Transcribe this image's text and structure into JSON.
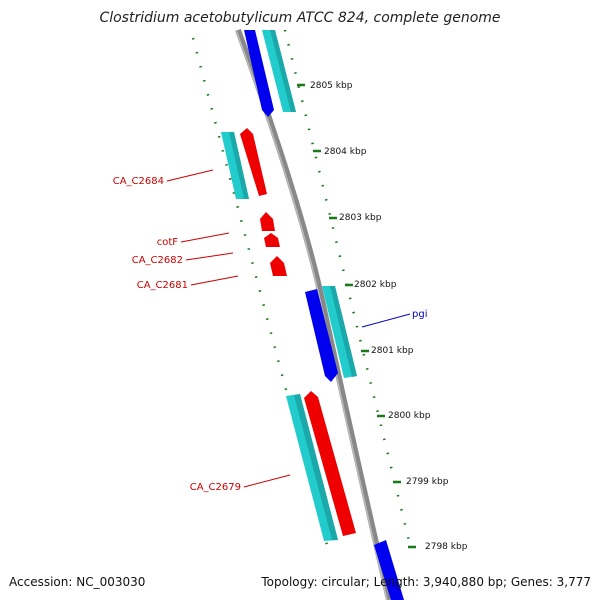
{
  "title": "Clostridium acetobutylicum ATCC 824, complete genome",
  "footer": {
    "accession": "Accession: NC_003030",
    "summary": "Topology: circular; Length: 3,940,880 bp; Genes: 3,777"
  },
  "ruler": {
    "unit": "kbp",
    "tick_labels": [
      "2805 kbp",
      "2804 kbp",
      "2803 kbp",
      "2802 kbp",
      "2801 kbp",
      "2800 kbp",
      "2799 kbp",
      "2798 kbp"
    ]
  },
  "gene_labels": [
    "CA_C2684",
    "cotF",
    "CA_C2682",
    "CA_C2681",
    "pgi",
    "CA_C2679"
  ],
  "colors": {
    "forward_gene": "#ee0000",
    "reverse_gene": "#0000ee",
    "cds_band": "#22cccc",
    "backbone": "#888888",
    "ruler_ticks": "#1a7a1a",
    "forward_label": "#cc0000",
    "reverse_label": "#0000cc"
  }
}
